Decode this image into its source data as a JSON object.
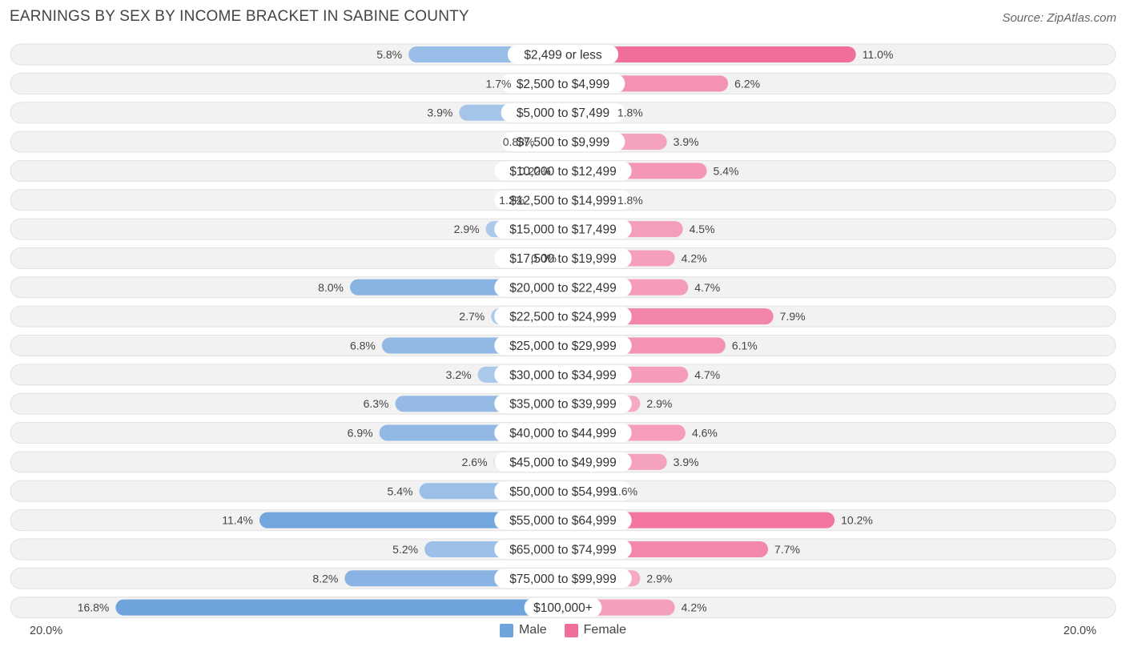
{
  "title": "EARNINGS BY SEX BY INCOME BRACKET IN SABINE COUNTY",
  "source": "Source: ZipAtlas.com",
  "chart_data": {
    "type": "bar",
    "orientation": "horizontal-diverging",
    "categories": [
      "$2,499 or less",
      "$2,500 to $4,999",
      "$5,000 to $7,499",
      "$7,500 to $9,999",
      "$10,000 to $12,499",
      "$12,500 to $14,999",
      "$15,000 to $17,499",
      "$17,500 to $19,999",
      "$20,000 to $22,499",
      "$22,500 to $24,999",
      "$25,000 to $29,999",
      "$30,000 to $34,999",
      "$35,000 to $39,999",
      "$40,000 to $44,999",
      "$45,000 to $49,999",
      "$50,000 to $54,999",
      "$55,000 to $64,999",
      "$65,000 to $74,999",
      "$75,000 to $99,999",
      "$100,000+"
    ],
    "series": [
      {
        "name": "Male",
        "color": "#6fa3dc",
        "values": [
          5.8,
          1.7,
          3.9,
          0.83,
          0.22,
          1.2,
          2.9,
          0.0,
          8.0,
          2.7,
          6.8,
          3.2,
          6.3,
          6.9,
          2.6,
          5.4,
          11.4,
          5.2,
          8.2,
          16.8
        ],
        "labels": [
          "5.8%",
          "1.7%",
          "3.9%",
          "0.83%",
          "0.22%",
          "1.2%",
          "2.9%",
          "0.0%",
          "8.0%",
          "2.7%",
          "6.8%",
          "3.2%",
          "6.3%",
          "6.9%",
          "2.6%",
          "5.4%",
          "11.4%",
          "5.2%",
          "8.2%",
          "16.8%"
        ]
      },
      {
        "name": "Female",
        "color": "#f06f98",
        "values": [
          11.0,
          6.2,
          1.8,
          3.9,
          5.4,
          1.8,
          4.5,
          4.2,
          4.7,
          7.9,
          6.1,
          4.7,
          2.9,
          4.6,
          3.9,
          1.6,
          10.2,
          7.7,
          2.9,
          4.2
        ],
        "labels": [
          "11.0%",
          "6.2%",
          "1.8%",
          "3.9%",
          "5.4%",
          "1.8%",
          "4.5%",
          "4.2%",
          "4.7%",
          "7.9%",
          "6.1%",
          "4.7%",
          "2.9%",
          "4.6%",
          "3.9%",
          "1.6%",
          "10.2%",
          "7.7%",
          "2.9%",
          "4.2%"
        ]
      }
    ],
    "xlim": [
      -20,
      20
    ],
    "axis_left_label": "20.0%",
    "axis_right_label": "20.0%",
    "legend": [
      "Male",
      "Female"
    ],
    "legend_position": "bottom-center"
  }
}
